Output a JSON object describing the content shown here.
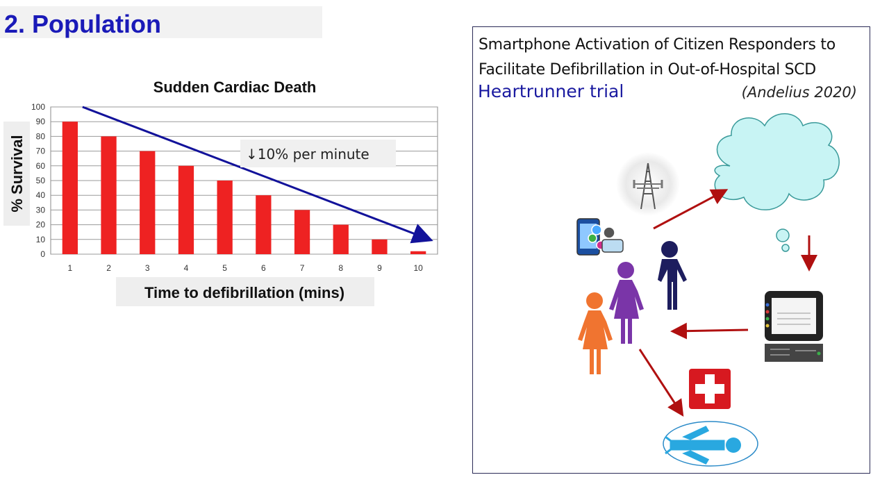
{
  "slide": {
    "title": "2. Population"
  },
  "chart_data": {
    "type": "bar",
    "title": "Sudden Cardiac Death",
    "xlabel": "Time to defibrillation (mins)",
    "ylabel": "% Survival",
    "categories": [
      "1",
      "2",
      "3",
      "4",
      "5",
      "6",
      "7",
      "8",
      "9",
      "10"
    ],
    "values": [
      90,
      80,
      70,
      60,
      50,
      40,
      30,
      20,
      10,
      2
    ],
    "ylim": [
      0,
      100
    ],
    "yticks": [
      0,
      10,
      20,
      30,
      40,
      50,
      60,
      70,
      80,
      90,
      100
    ],
    "grid": true,
    "bar_color": "#ee2222",
    "trend": {
      "from": [
        1,
        100
      ],
      "to": [
        10,
        10
      ],
      "color": "#12129a"
    },
    "annotation": "↓10% per minute"
  },
  "panel": {
    "title_line1": "Smartphone Activation of Citizen Responders to",
    "title_line2": "Facilitate Defibrillation in Out-of-Hospital SCD",
    "subtitle": "Heartrunner trial",
    "citation": "(Andelius 2020)",
    "accent_color": "#1a1aa0",
    "icons": [
      "cell-tower-icon",
      "smartphone-icon",
      "thought-cloud-icon",
      "computer-icon",
      "person-icon",
      "first-aid-icon",
      "patient-icon"
    ],
    "arrow_color": "#b01010"
  }
}
